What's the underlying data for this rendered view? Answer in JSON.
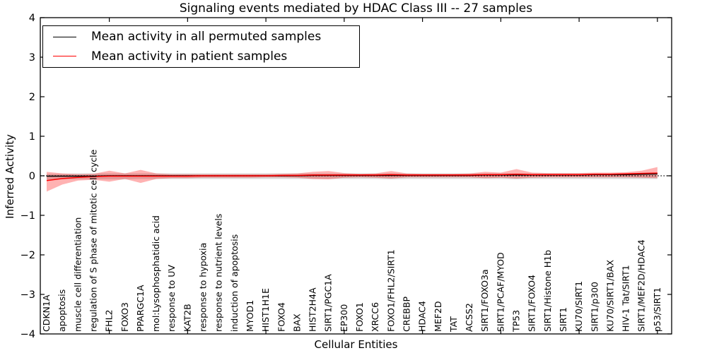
{
  "title": "Signaling events mediated by HDAC Class III -- 27 samples",
  "axes": {
    "ylabel": "Inferred Activity",
    "xlabel": "Cellular Entities",
    "yticks": [
      {
        "value": 4,
        "label": "4"
      },
      {
        "value": 3,
        "label": "3"
      },
      {
        "value": 2,
        "label": "2"
      },
      {
        "value": 1,
        "label": "1"
      },
      {
        "value": 0,
        "label": "0"
      },
      {
        "value": -1,
        "label": "−1"
      },
      {
        "value": -2,
        "label": "−2"
      },
      {
        "value": -3,
        "label": "−3"
      },
      {
        "value": -4,
        "label": "−4"
      }
    ]
  },
  "legend": {
    "items": [
      {
        "label": "Mean activity in all permuted samples",
        "color": "#000000"
      },
      {
        "label": "Mean activity in patient samples",
        "color": "#ff0000"
      }
    ]
  },
  "chart_data": {
    "type": "line",
    "title": "Signaling events mediated by HDAC Class III -- 27 samples",
    "xlabel": "Cellular Entities",
    "ylabel": "Inferred Activity",
    "ylim": [
      -4,
      4
    ],
    "grid": false,
    "legend_position": "upper left",
    "zero_line": 0,
    "categories": [
      "CDKN1A",
      "apoptosis",
      "muscle cell differentiation",
      "regulation of S phase of mitotic cell cycle",
      "FHL2",
      "FOXO3",
      "PPARGC1A",
      "mol:Lysophosphatidic acid",
      "response to UV",
      "KAT2B",
      "response to hypoxia",
      "response to nutrient levels",
      "induction of apoptosis",
      "MYOD1",
      "HIST1H1E",
      "FOXO4",
      "BAX",
      "HIST2H4A",
      "SIRT1/PGC1A",
      "EP300",
      "FOXO1",
      "XRCC6",
      "FOXO1/FHL2/SIRT1",
      "CREBBP",
      "HDAC4",
      "MEF2D",
      "TAT",
      "ACSS2",
      "SIRT1/FOXO3a",
      "SIRT1/PCAF/MYOD",
      "TP53",
      "SIRT1/FOXO4",
      "SIRT1/Histone H1b",
      "SIRT1",
      "KU70/SIRT1",
      "SIRT1/p300",
      "KU70/SIRT1/BAX",
      "HIV-1 Tat/SIRT1",
      "SIRT1/MEF2D/HDAC4",
      "p53/SIRT1"
    ],
    "series": [
      {
        "name": "Mean activity in all permuted samples",
        "color": "#000000",
        "values": [
          -0.01,
          -0.01,
          -0.01,
          -0.01,
          0.0,
          0.0,
          0.0,
          0.0,
          0.0,
          0.0,
          0.0,
          0.0,
          0.0,
          0.0,
          0.0,
          0.0,
          0.0,
          0.01,
          0.01,
          0.01,
          0.01,
          0.01,
          0.01,
          0.01,
          0.01,
          0.01,
          0.01,
          0.01,
          0.02,
          0.02,
          0.02,
          0.02,
          0.02,
          0.02,
          0.02,
          0.03,
          0.03,
          0.03,
          0.04,
          0.05
        ]
      },
      {
        "name": "Mean activity in patient samples",
        "color": "#ff0000",
        "values": [
          -0.12,
          -0.07,
          -0.04,
          -0.02,
          -0.01,
          -0.01,
          -0.01,
          -0.01,
          -0.01,
          -0.01,
          0.0,
          0.0,
          0.0,
          0.0,
          0.0,
          0.01,
          0.01,
          0.02,
          0.02,
          0.02,
          0.02,
          0.02,
          0.03,
          0.02,
          0.02,
          0.02,
          0.02,
          0.02,
          0.03,
          0.03,
          0.04,
          0.03,
          0.03,
          0.03,
          0.03,
          0.04,
          0.04,
          0.05,
          0.06,
          0.07
        ]
      }
    ],
    "bands": [
      {
        "name": "permuted-samples-range",
        "color": "rgba(0,0,0,0.15)",
        "upper": [
          0.05,
          0.05,
          0.06,
          0.06,
          0.06,
          0.06,
          0.06,
          0.06,
          0.06,
          0.06,
          0.06,
          0.06,
          0.06,
          0.06,
          0.06,
          0.06,
          0.06,
          0.06,
          0.06,
          0.06,
          0.06,
          0.06,
          0.06,
          0.06,
          0.06,
          0.06,
          0.06,
          0.06,
          0.06,
          0.06,
          0.06,
          0.06,
          0.06,
          0.06,
          0.06,
          0.06,
          0.06,
          0.07,
          0.07,
          0.08
        ],
        "lower": [
          -0.1,
          -0.09,
          -0.09,
          -0.09,
          -0.09,
          -0.09,
          -0.08,
          -0.08,
          -0.08,
          -0.08,
          -0.08,
          -0.08,
          -0.08,
          -0.08,
          -0.08,
          -0.08,
          -0.08,
          -0.08,
          -0.08,
          -0.08,
          -0.08,
          -0.08,
          -0.09,
          -0.08,
          -0.08,
          -0.08,
          -0.08,
          -0.08,
          -0.08,
          -0.08,
          -0.09,
          -0.08,
          -0.08,
          -0.08,
          -0.08,
          -0.08,
          -0.08,
          -0.08,
          -0.08,
          -0.08
        ]
      },
      {
        "name": "patient-samples-range",
        "color": "rgba(255,0,0,0.30)",
        "upper": [
          0.1,
          0.06,
          0.04,
          0.05,
          0.13,
          0.06,
          0.15,
          0.06,
          0.04,
          0.04,
          0.04,
          0.04,
          0.04,
          0.04,
          0.04,
          0.05,
          0.06,
          0.1,
          0.12,
          0.07,
          0.05,
          0.06,
          0.12,
          0.06,
          0.05,
          0.05,
          0.05,
          0.06,
          0.1,
          0.08,
          0.17,
          0.08,
          0.07,
          0.07,
          0.07,
          0.08,
          0.08,
          0.09,
          0.13,
          0.22
        ],
        "lower": [
          -0.4,
          -0.22,
          -0.12,
          -0.1,
          -0.15,
          -0.08,
          -0.18,
          -0.08,
          -0.06,
          -0.06,
          -0.05,
          -0.05,
          -0.05,
          -0.05,
          -0.04,
          -0.04,
          -0.05,
          -0.08,
          -0.09,
          -0.05,
          -0.04,
          -0.05,
          -0.07,
          -0.04,
          -0.04,
          -0.04,
          -0.04,
          -0.04,
          -0.06,
          -0.05,
          -0.07,
          -0.05,
          -0.04,
          -0.04,
          -0.04,
          -0.04,
          -0.04,
          -0.04,
          -0.05,
          -0.06
        ]
      }
    ]
  }
}
